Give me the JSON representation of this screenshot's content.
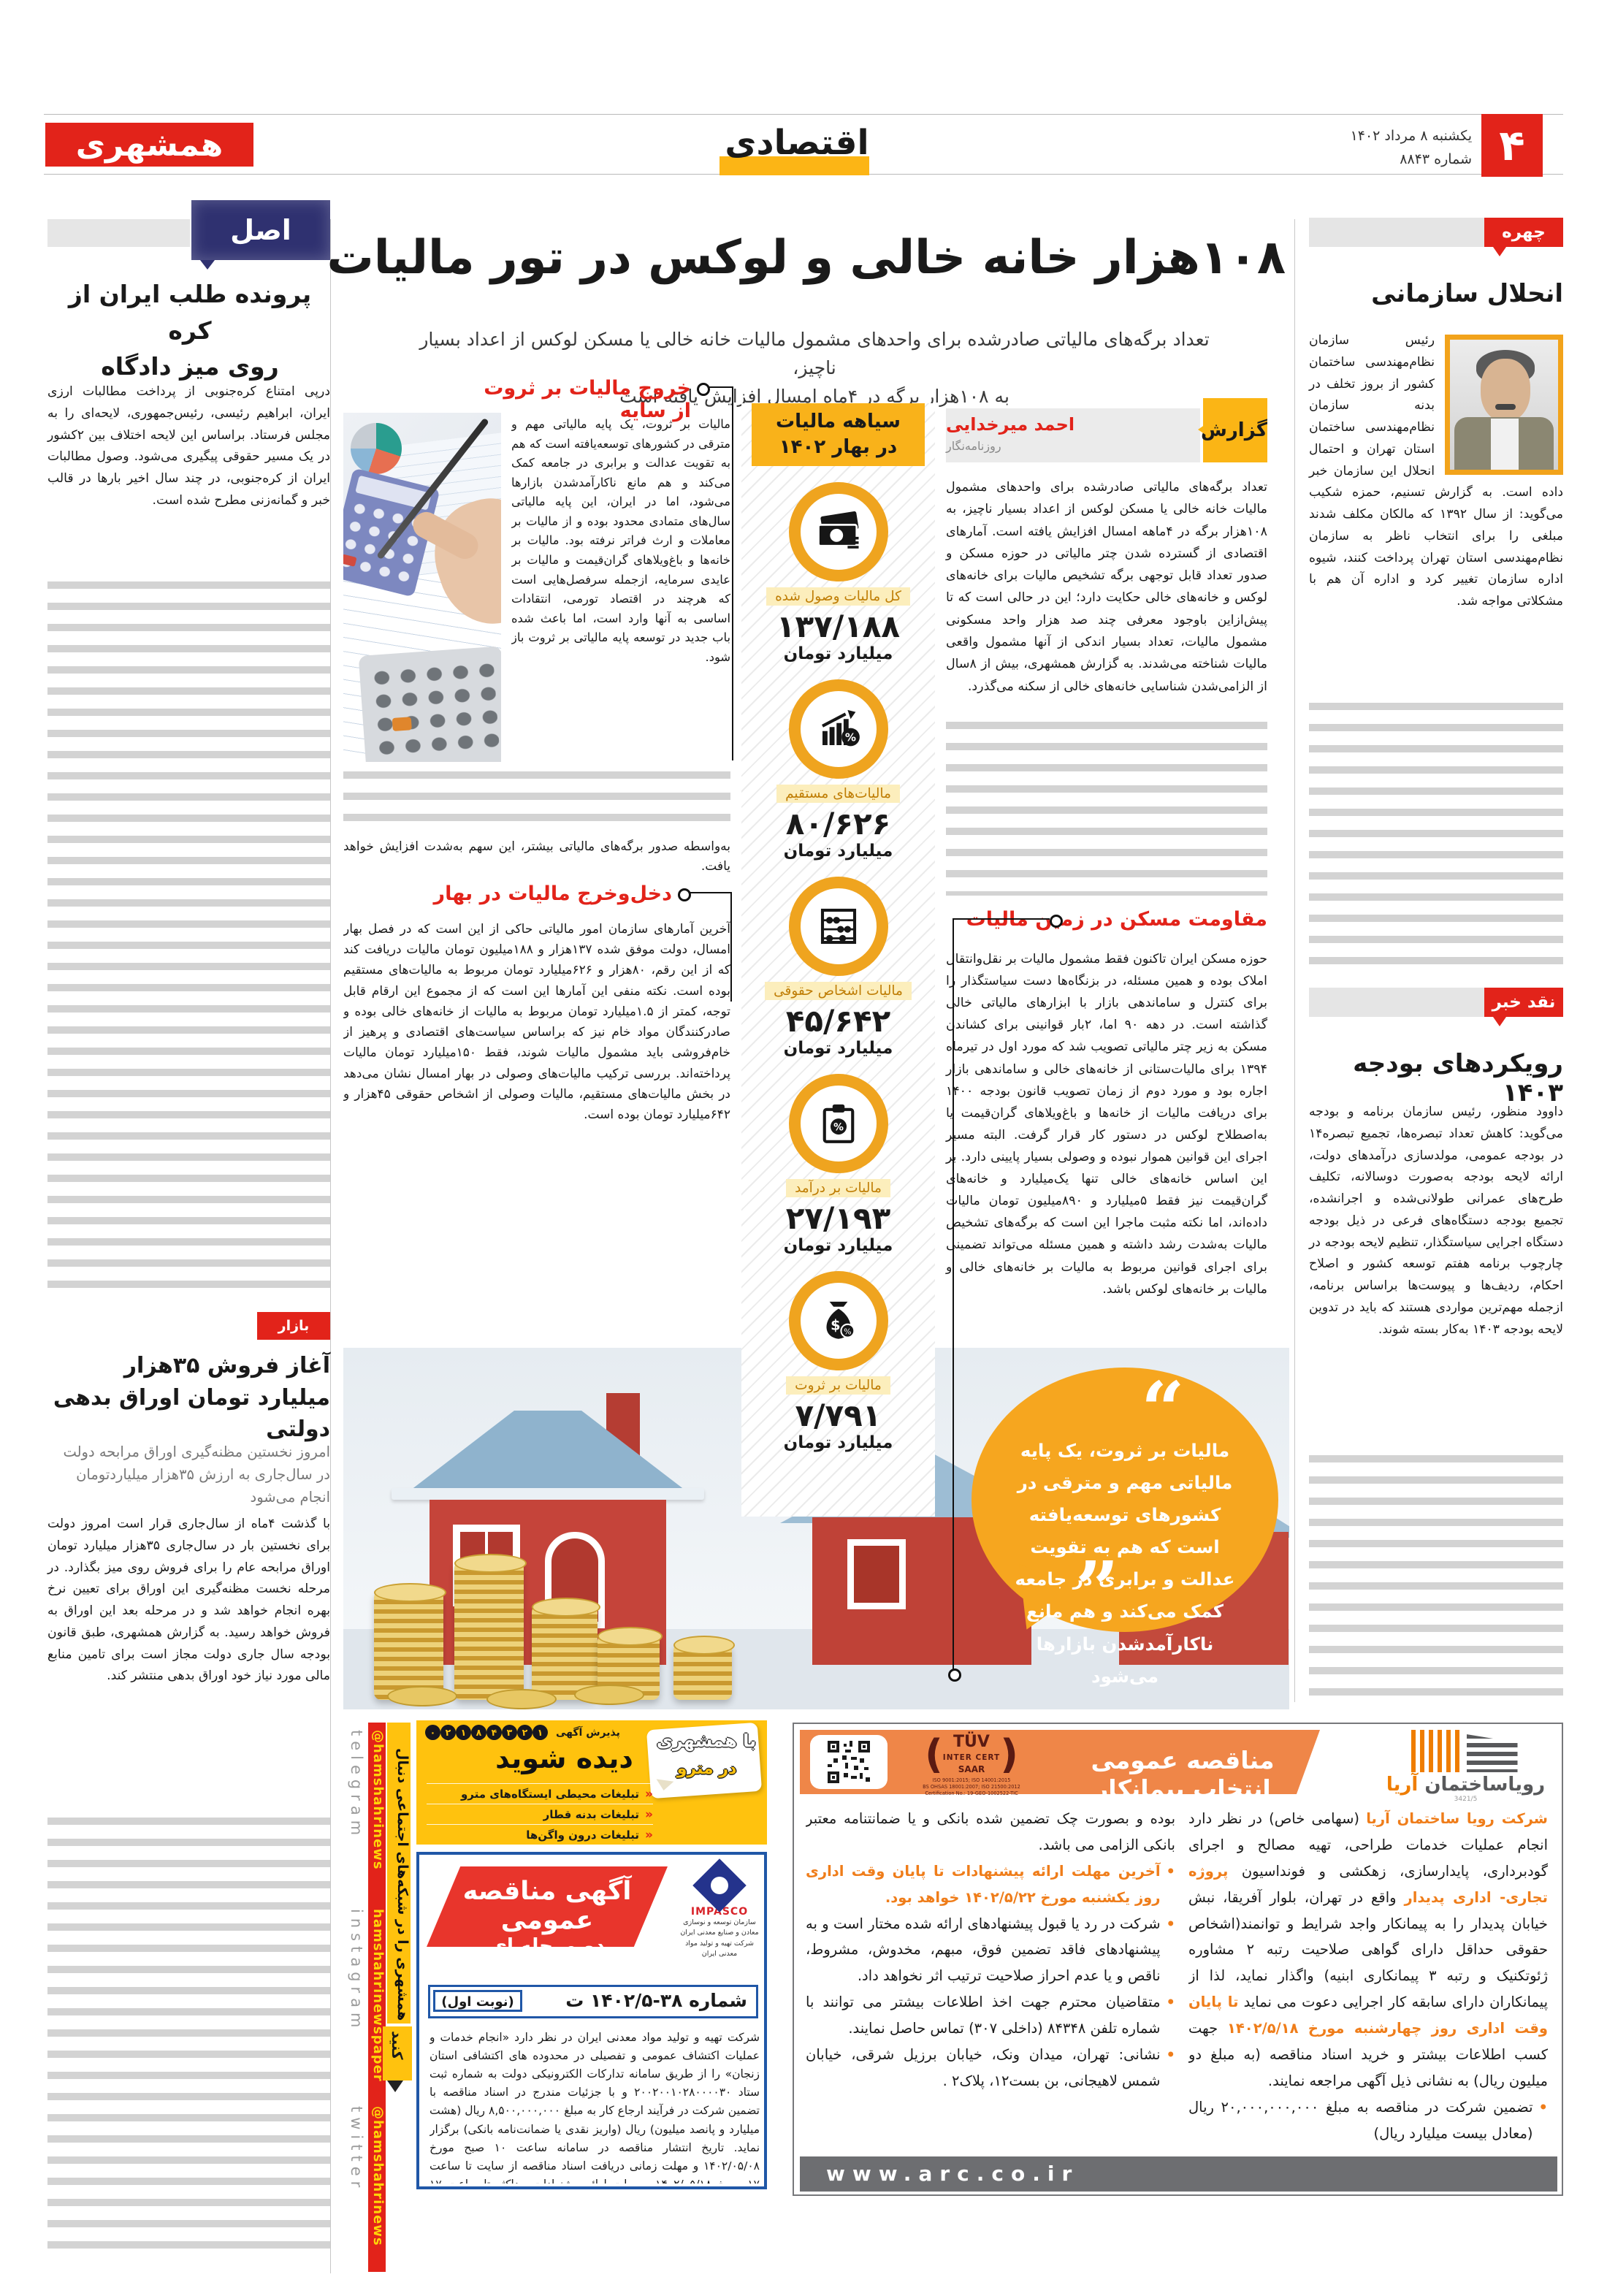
{
  "header": {
    "logo": "همشهری",
    "section": "اقتصادی",
    "page_number": "۴",
    "date": "یکشنبه ۸ مرداد ۱۴۰۲",
    "issue": "شماره ۸۸۴۳"
  },
  "main_article": {
    "headline": "۱۰۸هزار خانه خالی و لوکس در تور مالیات",
    "lead": "تعداد برگه‌های مالیاتی صادرشده برای واحدهای مشمول مالیات خانه خالی یا مسکن لوکس از اعداد بسیار ناچیز،\nبه ۱۰۸هزار برگه در ۴ماه امسال افزایش یافته است",
    "byline": {
      "label": "گزارش",
      "name": "احمد میرخدایی",
      "role": "روزنامه‌نگار"
    },
    "intro": "تعداد برگه‌های مالیاتی صادرشده برای واحدهای مشمول مالیات خانه خالی یا مسکن لوکس از اعداد بسیار ناچیز، به ۱۰۸هزار برگه در ۴ماهه امسال افزایش یافته است. آمارهای اقتصادی از گسترده شدن چتر مالیاتی در حوزه مسکن و صدور تعداد قابل توجهی برگه تشخیص مالیات برای خانه‌های لوکس و خانه‌های خالی حکایت دارد؛ این در حالی است که تا پیش‌ازاین باوجود معرفی چند صد هزار واحد مسکونی مشمول مالیات، تعداد بسیار اندکی از آنها مشمول واقعی مالیات شناخته می‌شدند. به گزارش همشهری، بیش از ۸سال از الزامی‌شدن شناسایی خانه‌های خالی از سکنه می‌گذرد.",
    "shadow": {
      "title": "خروج مالیات بر ثروت از سایه",
      "body": "مالیات بر ثروت، یک پایه مالیاتی مهم و مترقی در کشورهای توسعه‌یافته است که هم به تقویت عدالت و برابری در جامعه کمک می‌کند و هم مانع ناکارآمدشدن بازارها می‌شود، اما در ایران، این پایه مالیاتی سال‌های متمادی محدود بوده و از مالیات بر معاملات و ارث فراتر نرفته بود. مالیات بر خانه‌ها و باغ‌ویلاهای گران‌قیمت و مالیات بر عایدی سرمایه، ازجمله سرفصل‌هایی است که هرچند در اقتصاد تورمی، انتقادات اساسی به آنها وارد است، اما باعث شده باب جدید در توسعه پایه مالیاتی بر ثروت باز شود.",
      "tail": "به‌واسطه صدور برگه‌های مالیاتی بیشتر، این سهم به‌شدت افزایش خواهد یافت."
    },
    "spring": {
      "title": "دخل‌وخرج مالیات در بهار",
      "body": "آخرین آمارهای سازمان امور مالیاتی حاکی از این است که در فصل بهار امسال، دولت موفق شده ۱۳۷هزار و ۱۸۸میلیون تومان مالیات دریافت کند که از این رقم، ۸۰هزار و ۶۲۶میلیارد تومان مربوط به مالیات‌های مستقیم بوده است. نکته منفی این آمارها این است که از مجموع این ارقام قابل توجه، کمتر از ۱.۵میلیارد تومان مربوط به مالیات از خانه‌های خالی بوده و صادرکنندگان مواد خام نیز که براساس سیاست‌های اقتصادی و پرهیز از خام‌فروشی باید مشمول مالیات شوند، فقط ۱۵۰میلیارد تومان مالیات پرداخته‌اند. بررسی ترکیب مالیات‌های وصولی در بهار امسال نشان می‌دهد در بخش مالیات‌های مستقیم، مالیات وصولی از اشخاص حقوقی ۴۵هزار و ۶۴۲میلیارد تومان بوده است."
    },
    "resistance": {
      "title": "مقاومت مسکن در زمین مالیات",
      "body": "حوزه مسکن ایران تاکنون فقط مشمول مالیات بر نقل‌وانتقال املاک بوده و همین مسئله، در بزنگاه‌ها دست سیاستگذار را برای کنترل و ساماندهی بازار با ابزارهای مالیاتی خالی گذاشته است. در دهه ۹۰ اما، ۲بار قوانینی برای کشاندن مسکن به زیر چتر مالیاتی تصویب شد که مورد اول در تیرماه ۱۳۹۴ برای مالیات‌ستانی از خانه‌های خالی و ساماندهی بازار اجاره بود و مورد دوم از زمان تصویب قانون بودجه ۱۴۰۰ برای دریافت مالیات از خانه‌ها و باغ‌ویلاهای گران‌قیمت یا به‌اصطلاح لوکس در دستور کار قرار گرفت. البته مسیر اجرای این قوانین هموار نبوده و وصولی بسیار پایینی دارد. بر این اساس خانه‌های خالی تنها یک‌میلیارد و خانه‌های گران‌قیمت نیز فقط ۵میلیارد و ۸۹۰میلیون تومان مالیات داده‌اند، اما نکته مثبت ماجرا این است که برگه‌های تشخیص مالیات به‌شدت رشد داشته و همین مسئله می‌تواند تضمینی برای اجرای قوانین مربوط به مالیات بر خانه‌های خالی و مالیات بر خانه‌های لوکس باشد."
    },
    "quote": "مالیات بر ثروت، یک پایه مالیاتی مهم و مترقی در کشورهای توسعه‌یافته است که هم به تقویت عدالت و برابری در جامعه کمک می‌کند و هم مانع ناکارآمدشدن بازارها می‌شود"
  },
  "infographic": {
    "title": "سیاهه مالیات\nدر بهار ۱۴۰۲",
    "unit": "میلیارد تومان",
    "items": [
      {
        "label": "کل مالیات وصول شده",
        "value": "۱۳۷/۱۸۸",
        "icon": "banknotes-icon"
      },
      {
        "label": "مالیات‌های مستقیم",
        "value": "۸۰/۶۲۶",
        "icon": "chart-percent-icon"
      },
      {
        "label": "مالیات اشخاص حقوقی",
        "value": "۴۵/۶۴۲",
        "icon": "abacus-icon"
      },
      {
        "label": "مالیات بر درآمد",
        "value": "۲۷/۱۹۳",
        "icon": "clipboard-percent-icon"
      },
      {
        "label": "مالیات بر ثروت",
        "value": "۷/۷۹۱",
        "icon": "money-bag-icon"
      }
    ]
  },
  "face_of_day": {
    "tab": "چهره روز",
    "title": "انحلال سازمانی",
    "body": "رئیس سازمان نظام‌مهندسی ساختمان کشور از بروز تخلف در بدنه سازمان نظام‌مهندسی ساختمان استان تهران و احتمال انحلال این سازمان خبر داده است. به گزارش تسنیم، حمزه شکیب می‌گوید: از سال ۱۳۹۲ که مالکان مکلف شدند مبلغی را برای انتخاب ناظر به سازمان نظام‌مهندسی استان تهران پرداخت کنند، شیوه اداره سازمان تغییر کرد و اداره آن هم با مشکلاتی مواجه شد."
  },
  "news_critique": {
    "tab": "نقد خبر",
    "title": "رویکردهای بودجه ۱۴۰۳",
    "body": "داوود منظور، رئیس سازمان برنامه و بودجه می‌گوید: کاهش تعداد تبصره‌ها، تجمیع تبصره۱۴ در بودجه عمومی، مولدسازی درآمدهای دولت، ارائه لایحه بودجه به‌صورت دوسالانه، تکلیف طرح‌های عمرانی طولانی‌شده و اجرانشده، تجمیع بودجه دستگاه‌های فرعی در ذیل بودجه دستگاه اجرایی سیاستگذار، تنظیم لایحه بودجه در چارچوب برنامه هفتم توسعه کشور و اصلاح احکام، ردیف‌ها و پیوست‌ها براساس برنامه، ازجمله مهم‌ترین مواردی هستند که باید در تدوین لایحه بودجه ۱۴۰۳ به‌کار بسته شوند."
  },
  "principle": {
    "badge": "اصل ماجرا",
    "title": "پرونده طلب ایران از کره\nروی میز دادگاه",
    "body": "درپی امتناع کره‌جنوبی از پرداخت مطالبات ارزی ایران، ابراهیم رئیسی، رئیس‌جمهوری، لایحه‌ای را به مجلس فرستاد. براساس این لایحه اختلاف بین ۲کشور در یک مسیر حقوقی پیگیری می‌شود. وصول مطالبات ایران از کره‌جنوبی، در چند سال اخیر بارها در قالب خبر و گمانه‌زنی مطرح شده است."
  },
  "market": {
    "tab": "بازار سرمایه",
    "title": "آغاز فروش ۳۵هزار میلیارد تومان اوراق بدهی دولتی",
    "subtitle": "امروز نخستین مظنه‌گیری اوراق مرابحه دولت در سال‌جاری به ارزش ۳۵هزار میلیاردتومان انجام می‌شود",
    "body": "با گذشت ۴ماه از سال‌جاری قرار است امروز دولت برای نخستین بار در سال‌جاری ۳۵هزار میلیارد تومان اوراق مرابحه عام را برای فروش روی میز بگذارد. در مرحله نخست مظنه‌گیری این اوراق برای تعیین نرخ بهره انجام خواهد شد و در مرحله بعد این اوراق به فروش خواهد رسید. به گزارش همشهری، طبق قانون بودجه سال جاری دولت مجاز است برای تامین منابع مالی مورد نیاز خود اوراق بدهی منتشر کند."
  },
  "social": {
    "follow_main": "همشهری را در شبکه‌های اجتماعی دنبال",
    "follow_tab": "کنید",
    "platforms": [
      {
        "name": "telegram",
        "handle": "@hamshahrinews"
      },
      {
        "name": "instagram",
        "handle": "hamshahrinewspaper"
      },
      {
        "name": "twitter",
        "handle": "@hamshahrinews"
      }
    ]
  },
  "ads": {
    "metro": {
      "acceptance_label": "پذیرش آگهی",
      "phone_digits": [
        "۰",
        "۲",
        "۱",
        "۸",
        "۴",
        "۳",
        "۲",
        "۱"
      ],
      "slogan_line1": "با همشهری",
      "slogan_line2": "در مترو",
      "slogan_line3": "دیده شوید",
      "items": [
        "تبلیغات محیطی ایستگاه‌های مترو",
        "تبلیغات بدنه قطار",
        "تبلیغات درون واگن‌ها"
      ]
    },
    "impasco": {
      "title_line1": "آگهی مناقصه عمومی",
      "title_line2": "دو مرحله ای",
      "number": "شماره ۳۸-۱۴۰۲/۵ ت",
      "round": "(نوبت اول)",
      "logo_name": "IMPASCO",
      "logo_caption1": "سازمان توسعه و نوسازی معادن و صنایع معدنی ایران",
      "logo_caption2": "شرکت تهیه و تولید مواد معدنی ایران",
      "body": "شرکت تهیه و تولید مواد معدنی ایران در نظر دارد «انجام خدمات و عملیات اکتشاف عمومی و تفصیلی در محدوده های اکتشافی استان زنجان» را از طریق سامانه تدارکات الکترونیکی دولت به شماره ثبت ستاد ۲۰۰۲۰۰۱۰۲۸۰۰۰۰۳۰ و با جزئیات مندرج در اسناد مناقصه با تضمین شرکت در فرآیند ارجاع کار به مبلغ ۸,۵۰۰,۰۰۰,۰۰۰ ریال (هشت میلیارد و پانصد میلیون) ریال (واریز نقدی یا ضمانت‌نامه بانکی) برگزار نماید. تاریخ انتشار مناقصه در سامانه ساعت ۱۰ صبح مورخ ۱۴۰۲/۰۵/۰۸ و مهلت زمانی دریافت اسناد مناقصه از سایت تا ساعت ۱۷ مورخ ۱۴۰۲/۰۵/۱۸ و مهلت ارائه پیشنهادات حداکثر تا ساعت ۱۷ مورخ ۱۴۰۲/۰۵/۲۸ و جلسه بازگشایی پاکات صبح روز یکشنبه مورخ ۱۴۰۲/۰۵/۲۹ برگزار می‌گردد. علاقمندان شرکت در مناقصه می‌بایست جهت ثبت نام و دریافت گواهی امضای الکترونیکی با شماره ۱۴۵۶ تماس حاصل نمایند و یا به آدرس اینترنتی www.setadiran.ir مراجعه نمایند."
    },
    "arya": {
      "banner": "مناقصه عمومی انتخاب پیمانکار",
      "company_gray": "رویاساختمان",
      "company_orange": "آریا",
      "company_reg": "3421/5",
      "tuv_t1": "TÜV",
      "tuv_t2": "INTER CERT",
      "tuv_t3": "SAAR",
      "tuv_cert1": "ISO 9001:2015; ISO 14001:2015",
      "tuv_cert2": "BS OHSAS 18001:2007; ISO 21500:2012",
      "tuv_cert3": "Certification No.: 19-GEO-1002522-TIC",
      "para_parts": [
        {
          "t": "شرکت رویا ساختمان آریا",
          "hl": true
        },
        {
          "t": " (سهامی خاص) در نظر دارد انجام عملیات خدمات طراحی، تهیه مصالح و اجرای گودبرداری، پایدارسازی، زهکشی و فونداسیون ",
          "hl": false
        },
        {
          "t": "پروژه تجاری- اداری پدیدار",
          "hl": true
        },
        {
          "t": " واقع در تهران، بلوار آفریقا، نبش خیابان پدیدار را به پیمانکار واجد شرایط و توانمند(اشخاص حقوقی حداقل دارای گواهی صلاحیت رتبه ۲ مشاوره ژئوتکنیک و رتبه ۳ پیمانکاری ابنیه) واگذار نماید، لذا از پیمانکاران دارای سابقه کار اجرایی دعوت می نماید ",
          "hl": false
        },
        {
          "t": "تا پایان وقت اداری روز چهارشنبه مورخ ۱۴۰۲/۵/۱۸",
          "hl": true
        },
        {
          "t": " جهت کسب اطلاعات بیشتر و خرید اسناد مناقصه (به مبلغ دو میلیون ریال) به نشانی ذیل آگهی مراجعه نمایند.",
          "hl": false
        }
      ],
      "bullets_right": [
        {
          "dot": true,
          "hl": false,
          "text": "تضمین شرکت در مناقصه به مبلغ ۲۰,۰۰۰,۰۰۰,۰۰۰ ریال (معادل بیست میلیارد ریال)"
        }
      ],
      "bullets_left": [
        {
          "dot": false,
          "hl": false,
          "text": "بوده و بصورت چک تضمین شده بانکی و یا ضمانتنامه معتبر بانکی الزامی می باشد."
        },
        {
          "dot": true,
          "hl": true,
          "text": "آخرین مهلت ارائه پیشنهادات تا پایان وقت اداری روز یکشنبه مورخ ۱۴۰۲/۵/۲۲ خواهد بود."
        },
        {
          "dot": true,
          "hl": false,
          "text": "شرکت در رد یا قبول پیشنهادهای ارائه شده مختار است و به پیشنهادهای فاقد تضمین فوق، مبهم، مخدوش، مشروط، ناقص و یا عدم احراز صلاحیت ترتیب اثر نخواهد داد."
        },
        {
          "dot": true,
          "hl": false,
          "text": "متقاضیان محترم جهت اخذ اطلاعات بیشتر می توانند با شماره تلفن ۸۴۳۴۸ (داخلی ۳۰۷) تماس حاصل نمایند."
        },
        {
          "dot": true,
          "hl": false,
          "text": "نشانی: تهران، میدان ونک، خیابان برزیل شرقی، خیابان شمس لاهیجانی، بن بست۱۲، پلاک۲ ."
        }
      ],
      "website": "www.arc.co.ir"
    }
  }
}
